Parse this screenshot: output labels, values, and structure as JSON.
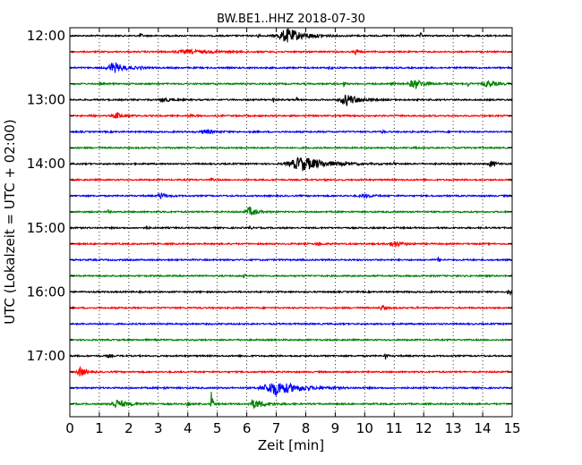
{
  "chart_data": {
    "type": "line",
    "title": "BW.BE1..HHZ 2018-07-30",
    "xlabel": "Zeit  [min]",
    "ylabel": "UTC (Lokalzeit = UTC + 02:00)",
    "xlim": [
      0,
      15
    ],
    "x_ticks": [
      0,
      1,
      2,
      3,
      4,
      5,
      6,
      7,
      8,
      9,
      10,
      11,
      12,
      13,
      14,
      15
    ],
    "x_tick_labels": [
      "0",
      "1",
      "2",
      "3",
      "4",
      "5",
      "6",
      "7",
      "8",
      "9",
      "10",
      "11",
      "12",
      "13",
      "14",
      "15"
    ],
    "y_tick_labels": [
      "12:00",
      "13:00",
      "14:00",
      "15:00",
      "16:00",
      "17:00"
    ],
    "grid": "vertical dotted",
    "trace_interval_min": 15,
    "colors": [
      "#000000",
      "#ff0000",
      "#0000ff",
      "#008000"
    ],
    "series": [
      {
        "start": "12:00",
        "color": "#000000",
        "events": [
          {
            "t": 7.4,
            "amp": 0.85,
            "dur": 1.2
          },
          {
            "t": 2.4,
            "amp": 0.35,
            "dur": 0.1
          },
          {
            "t": 6.4,
            "amp": 0.3,
            "dur": 0.1
          },
          {
            "t": 11.9,
            "amp": 0.3,
            "dur": 0.1
          }
        ]
      },
      {
        "start": "12:15",
        "color": "#ff0000",
        "events": [
          {
            "t": 4.1,
            "amp": 0.2,
            "dur": 1.8
          },
          {
            "t": 9.7,
            "amp": 0.35,
            "dur": 0.15
          }
        ]
      },
      {
        "start": "12:30",
        "color": "#0000ff",
        "events": [
          {
            "t": 1.5,
            "amp": 0.6,
            "dur": 0.8
          },
          {
            "t": 2.4,
            "amp": 0.2,
            "dur": 0.1
          },
          {
            "t": 8.8,
            "amp": 0.2,
            "dur": 0.2
          }
        ]
      },
      {
        "start": "12:45",
        "color": "#008000",
        "events": [
          {
            "t": 11.7,
            "amp": 0.55,
            "dur": 0.7
          },
          {
            "t": 14.2,
            "amp": 0.4,
            "dur": 0.6
          },
          {
            "t": 9.3,
            "amp": 0.3,
            "dur": 0.1
          },
          {
            "t": 10.9,
            "amp": 0.2,
            "dur": 0.1
          },
          {
            "t": 13.5,
            "amp": 0.3,
            "dur": 0.1
          }
        ]
      },
      {
        "start": "13:00",
        "color": "#000000",
        "events": [
          {
            "t": 9.4,
            "amp": 0.7,
            "dur": 0.8
          },
          {
            "t": 3.2,
            "amp": 0.25,
            "dur": 0.5
          },
          {
            "t": 6.9,
            "amp": 0.35,
            "dur": 0.1
          },
          {
            "t": 7.7,
            "amp": 0.25,
            "dur": 0.1
          }
        ]
      },
      {
        "start": "13:15",
        "color": "#ff0000",
        "events": [
          {
            "t": 1.6,
            "amp": 0.35,
            "dur": 0.5
          },
          {
            "t": 0.7,
            "amp": 0.25,
            "dur": 0.1
          },
          {
            "t": 4.1,
            "amp": 0.2,
            "dur": 0.2
          }
        ]
      },
      {
        "start": "13:30",
        "color": "#0000ff",
        "events": [
          {
            "t": 4.6,
            "amp": 0.25,
            "dur": 0.6
          },
          {
            "t": 10.6,
            "amp": 0.2,
            "dur": 0.1
          }
        ]
      },
      {
        "start": "13:45",
        "color": "#008000",
        "events": [
          {
            "t": 11.7,
            "amp": 0.2,
            "dur": 0.1
          }
        ]
      },
      {
        "start": "14:00",
        "color": "#000000",
        "events": [
          {
            "t": 7.9,
            "amp": 0.85,
            "dur": 1.6
          },
          {
            "t": 14.3,
            "amp": 0.4,
            "dur": 0.3
          },
          {
            "t": 11.0,
            "amp": 0.2,
            "dur": 0.1
          }
        ]
      },
      {
        "start": "14:15",
        "color": "#ff0000",
        "events": [
          {
            "t": 4.8,
            "amp": 0.2,
            "dur": 0.1
          },
          {
            "t": 8.7,
            "amp": 0.2,
            "dur": 0.1
          }
        ]
      },
      {
        "start": "14:30",
        "color": "#0000ff",
        "events": [
          {
            "t": 3.1,
            "amp": 0.35,
            "dur": 0.4
          },
          {
            "t": 10.0,
            "amp": 0.2,
            "dur": 0.6
          }
        ]
      },
      {
        "start": "14:45",
        "color": "#008000",
        "events": [
          {
            "t": 6.1,
            "amp": 0.55,
            "dur": 0.5
          },
          {
            "t": 1.3,
            "amp": 0.2,
            "dur": 0.1
          }
        ]
      },
      {
        "start": "15:00",
        "color": "#000000",
        "events": [
          {
            "t": 2.6,
            "amp": 0.25,
            "dur": 0.1
          },
          {
            "t": 6.1,
            "amp": 0.25,
            "dur": 0.1
          }
        ]
      },
      {
        "start": "15:15",
        "color": "#ff0000",
        "events": [
          {
            "t": 11.0,
            "amp": 0.4,
            "dur": 0.5
          },
          {
            "t": 8.4,
            "amp": 0.2,
            "dur": 0.3
          }
        ]
      },
      {
        "start": "15:30",
        "color": "#0000ff",
        "events": [
          {
            "t": 12.5,
            "amp": 0.35,
            "dur": 0.1
          }
        ]
      },
      {
        "start": "15:45",
        "color": "#008000",
        "events": [
          {
            "t": 5.9,
            "amp": 0.2,
            "dur": 0.1
          }
        ]
      },
      {
        "start": "16:00",
        "color": "#000000",
        "events": [
          {
            "t": 14.9,
            "amp": 0.35,
            "dur": 0.2
          }
        ]
      },
      {
        "start": "16:15",
        "color": "#ff0000",
        "events": [
          {
            "t": 10.6,
            "amp": 0.3,
            "dur": 0.3
          },
          {
            "t": 11.8,
            "amp": 0.2,
            "dur": 0.1
          }
        ]
      },
      {
        "start": "16:30",
        "color": "#0000ff",
        "events": [
          {
            "t": 1.0,
            "amp": 0.2,
            "dur": 0.1
          }
        ]
      },
      {
        "start": "16:45",
        "color": "#008000",
        "events": []
      },
      {
        "start": "17:00",
        "color": "#000000",
        "events": [
          {
            "t": 10.7,
            "amp": 0.5,
            "dur": 0.1
          },
          {
            "t": 1.3,
            "amp": 0.2,
            "dur": 0.2
          }
        ]
      },
      {
        "start": "17:15",
        "color": "#ff0000",
        "events": [
          {
            "t": 0.35,
            "amp": 0.6,
            "dur": 0.4
          }
        ]
      },
      {
        "start": "17:30",
        "color": "#0000ff",
        "events": [
          {
            "t": 7.0,
            "amp": 0.85,
            "dur": 1.6
          },
          {
            "t": 3.2,
            "amp": 0.2,
            "dur": 0.1
          }
        ]
      },
      {
        "start": "17:45",
        "color": "#008000",
        "events": [
          {
            "t": 1.6,
            "amp": 0.5,
            "dur": 0.8
          },
          {
            "t": 4.8,
            "amp": 1.6,
            "dur": 0.1
          },
          {
            "t": 6.3,
            "amp": 0.5,
            "dur": 0.8
          },
          {
            "t": 4.0,
            "amp": 0.3,
            "dur": 0.1
          },
          {
            "t": 2.7,
            "amp": 0.25,
            "dur": 0.1
          }
        ]
      }
    ]
  }
}
